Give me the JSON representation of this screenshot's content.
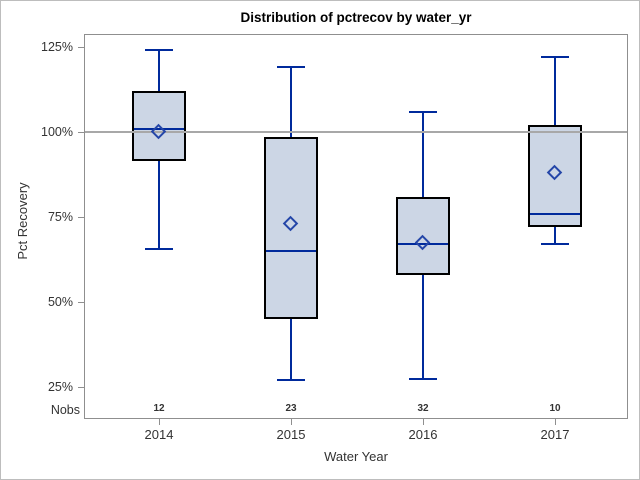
{
  "title": "Distribution of pctrecov by water_yr",
  "y_axis": {
    "label": "Pct Recovery",
    "tick_labels": [
      "125%",
      "100%",
      "75%",
      "50%",
      "25%"
    ],
    "tick_values": [
      125,
      100,
      75,
      50,
      25
    ]
  },
  "x_axis": {
    "label": "Water Year",
    "categories": [
      "2014",
      "2015",
      "2016",
      "2017"
    ]
  },
  "nobs_row": {
    "label": "Nobs",
    "values": [
      "12",
      "23",
      "32",
      "10"
    ]
  },
  "chart_data": {
    "type": "box",
    "title": "Distribution of pctrecov by water_yr",
    "xlabel": "Water Year",
    "ylabel": "Pct Recovery",
    "categories": [
      "2014",
      "2015",
      "2016",
      "2017"
    ],
    "y_ticks": [
      25,
      50,
      75,
      100,
      125
    ],
    "y_tick_format": "percent",
    "ylim": [
      15,
      129
    ],
    "reference_line": 100,
    "grid": false,
    "legend": "none",
    "series": [
      {
        "category": "2014",
        "nobs": 12,
        "whisker_low": 65.5,
        "q1": 91.5,
        "median": 101,
        "q3": 112,
        "whisker_high": 124,
        "mean": 100
      },
      {
        "category": "2015",
        "nobs": 23,
        "whisker_low": 27,
        "q1": 45,
        "median": 65,
        "q3": 98.5,
        "whisker_high": 119,
        "mean": 73
      },
      {
        "category": "2016",
        "nobs": 32,
        "whisker_low": 27.5,
        "q1": 58,
        "median": 67,
        "q3": 81,
        "whisker_high": 106,
        "mean": 67.5
      },
      {
        "category": "2017",
        "nobs": 10,
        "whisker_low": 67,
        "q1": 72,
        "median": 76,
        "q3": 102,
        "whisker_high": 122,
        "mean": 88
      }
    ]
  },
  "colors": {
    "box_fill": "#ccd6e5",
    "box_border": "#000000",
    "line_blue": "#002a9c",
    "mean_marker": "#2446a8",
    "frame_gray": "#8f8f8f",
    "ref_line_gray": "#a8a8a8",
    "text": "#333333",
    "figure_border": "#bdbdbd"
  }
}
